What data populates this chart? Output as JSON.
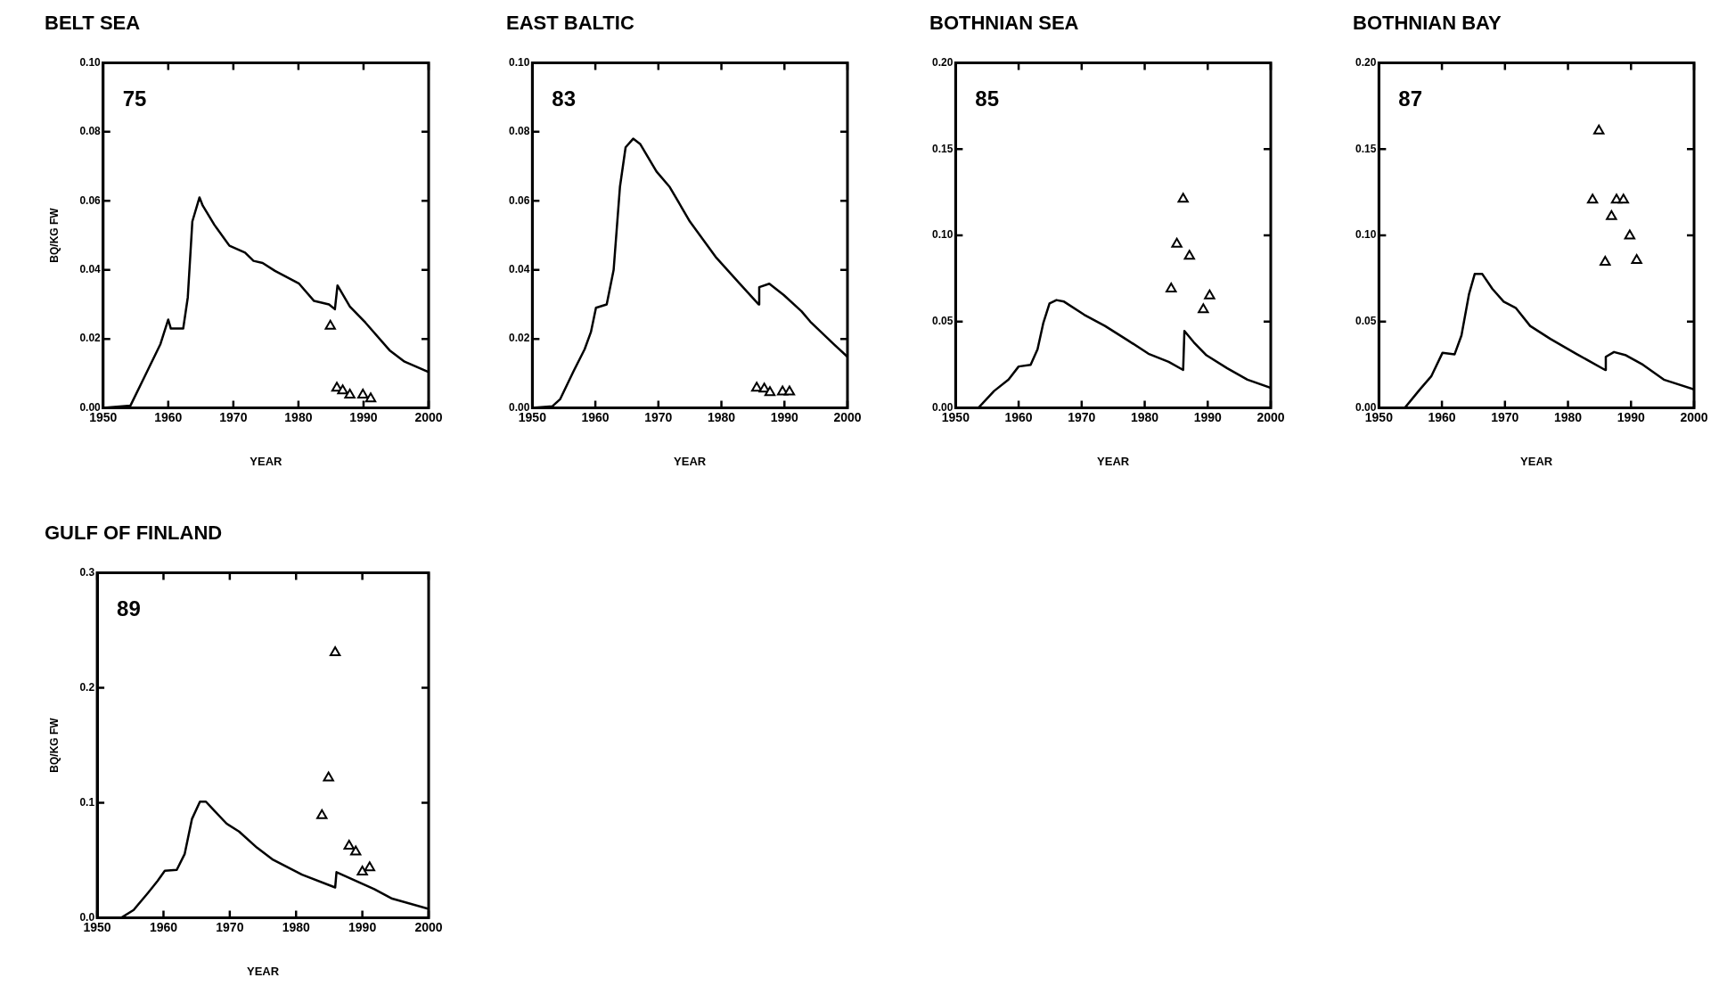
{
  "chart_data": [
    {
      "type": "line",
      "title": "BELT SEA",
      "xlabel": "YEAR",
      "ylabel": "BQ/KG FW",
      "xlim": [
        1950,
        2000
      ],
      "xticks": [
        1950,
        1960,
        1970,
        1980,
        1990,
        2000
      ],
      "ylim": [
        0,
        0.1
      ],
      "yticks": [
        {
          "value": 0,
          "label": "0.00"
        },
        {
          "value": 0.02,
          "label": "0.02"
        },
        {
          "value": 0.04,
          "label": "0.04"
        },
        {
          "value": 0.06,
          "label": "0.06"
        },
        {
          "value": 0.08,
          "label": "0.08"
        },
        {
          "value": 0.1,
          "label": "0.10"
        }
      ],
      "annotations": [
        "75"
      ],
      "series": [
        {
          "type": "line",
          "color": "#000000",
          "x": [
            1950,
            1954.2,
            1956.5,
            1958.8,
            1960,
            1960.4,
            1962.3,
            1963,
            1963.7,
            1964.8,
            1965.3,
            1967.1,
            1969.4,
            1971.8,
            1973.1,
            1974.5,
            1976.4,
            1980.1,
            1982.4,
            1984.7,
            1985.6,
            1986,
            1987.9,
            1990.3,
            1994,
            1996.3,
            2000
          ],
          "values": [
            0,
            0.0007,
            0.0096,
            0.0185,
            0.0256,
            0.023,
            0.023,
            0.032,
            0.054,
            0.061,
            0.0586,
            0.053,
            0.047,
            0.045,
            0.0426,
            0.042,
            0.0397,
            0.036,
            0.031,
            0.03,
            0.0286,
            0.0355,
            0.0294,
            0.0247,
            0.0167,
            0.0134,
            0.0104
          ]
        },
        {
          "type": "scatter",
          "color": "#000000",
          "marker": "triangle",
          "x": [
            1984.9,
            1985.9,
            1986.8,
            1987.9,
            1989.9,
            1991.1
          ],
          "values": [
            0.0237,
            0.0058,
            0.005,
            0.0038,
            0.0038,
            0.0027
          ]
        }
      ]
    },
    {
      "type": "line",
      "title": "EAST BALTIC",
      "xlabel": "YEAR",
      "xlim": [
        1950,
        2000
      ],
      "xticks": [
        1950,
        1960,
        1970,
        1980,
        1990,
        2000
      ],
      "ylim": [
        0,
        0.1
      ],
      "yticks": [
        {
          "value": 0,
          "label": "0.00"
        },
        {
          "value": 0.02,
          "label": "0.02"
        },
        {
          "value": 0.04,
          "label": "0.04"
        },
        {
          "value": 0.06,
          "label": "0.06"
        },
        {
          "value": 0.08,
          "label": "0.08"
        },
        {
          "value": 0.1,
          "label": "0.10"
        }
      ],
      "annotations": [
        "83"
      ],
      "series": [
        {
          "type": "line",
          "color": "#000000",
          "x": [
            1950,
            1953.2,
            1954.4,
            1956.5,
            1958.3,
            1959.3,
            1960.1,
            1961.8,
            1962.9,
            1963.9,
            1964.8,
            1966,
            1967.1,
            1969.7,
            1971.8,
            1975,
            1979.2,
            1982.9,
            1985.9,
            1986,
            1987.6,
            1989.9,
            1992.7,
            1994.1,
            1997.8,
            2000
          ],
          "values": [
            0,
            0.0005,
            0.0025,
            0.0105,
            0.017,
            0.022,
            0.029,
            0.03,
            0.04,
            0.064,
            0.0755,
            0.078,
            0.0765,
            0.0685,
            0.064,
            0.054,
            0.0435,
            0.036,
            0.03,
            0.035,
            0.036,
            0.0327,
            0.028,
            0.025,
            0.0185,
            0.0148
          ]
        },
        {
          "type": "scatter",
          "color": "#000000",
          "marker": "triangle",
          "x": [
            1985.6,
            1986.8,
            1987.7,
            1989.7,
            1990.8
          ],
          "values": [
            0.0058,
            0.0055,
            0.0045,
            0.0047,
            0.0047
          ]
        }
      ]
    },
    {
      "type": "line",
      "title": "BOTHNIAN SEA",
      "xlabel": "YEAR",
      "xlim": [
        1950,
        2000
      ],
      "xticks": [
        1950,
        1960,
        1970,
        1980,
        1990,
        2000
      ],
      "ylim": [
        0,
        0.2
      ],
      "yticks": [
        {
          "value": 0,
          "label": "0.00"
        },
        {
          "value": 0.05,
          "label": "0.05"
        },
        {
          "value": 0.1,
          "label": "0.10"
        },
        {
          "value": 0.15,
          "label": "0.15"
        },
        {
          "value": 0.2,
          "label": "0.20"
        }
      ],
      "annotations": [
        "85"
      ],
      "series": [
        {
          "type": "line",
          "color": "#000000",
          "x": [
            1950,
            1953.6,
            1956.1,
            1958.4,
            1960,
            1961.9,
            1963,
            1963.9,
            1964.9,
            1966,
            1967.2,
            1970.4,
            1973.7,
            1977.4,
            1980.6,
            1983.8,
            1986.1,
            1986.3,
            1987.8,
            1989.8,
            1993.1,
            1996.3,
            2000
          ],
          "values": [
            0,
            0,
            0.0098,
            0.0164,
            0.024,
            0.025,
            0.034,
            0.049,
            0.0606,
            0.0625,
            0.0616,
            0.054,
            0.0475,
            0.039,
            0.0314,
            0.0267,
            0.022,
            0.0446,
            0.038,
            0.0305,
            0.023,
            0.0164,
            0.0117
          ]
        },
        {
          "type": "scatter",
          "color": "#000000",
          "marker": "triangle",
          "x": [
            1984.2,
            1985.1,
            1986.1,
            1987.1,
            1989.3,
            1990.3
          ],
          "values": [
            0.069,
            0.095,
            0.121,
            0.088,
            0.057,
            0.065
          ]
        }
      ]
    },
    {
      "type": "line",
      "title": "BOTHNIAN BAY",
      "xlabel": "YEAR",
      "xlim": [
        1950,
        2000
      ],
      "xticks": [
        1950,
        1960,
        1970,
        1980,
        1990,
        2000
      ],
      "ylim": [
        0,
        0.2
      ],
      "yticks": [
        {
          "value": 0,
          "label": "0.00"
        },
        {
          "value": 0.05,
          "label": "0.05"
        },
        {
          "value": 0.1,
          "label": "0.10"
        },
        {
          "value": 0.15,
          "label": "0.15"
        },
        {
          "value": 0.2,
          "label": "0.20"
        }
      ],
      "annotations": [
        "87"
      ],
      "series": [
        {
          "type": "line",
          "color": "#000000",
          "x": [
            1950,
            1954.1,
            1956.5,
            1958.3,
            1960.1,
            1962,
            1963.1,
            1964.3,
            1965.2,
            1966.4,
            1968,
            1969.8,
            1971.7,
            1974,
            1977.2,
            1981.3,
            1985.9,
            1986,
            1987.3,
            1989.2,
            1991.9,
            1995.2,
            2000
          ],
          "values": [
            0,
            0,
            0.0107,
            0.0183,
            0.032,
            0.031,
            0.042,
            0.066,
            0.0776,
            0.0776,
            0.069,
            0.0616,
            0.058,
            0.0475,
            0.04,
            0.0314,
            0.022,
            0.0296,
            0.0324,
            0.0305,
            0.025,
            0.0164,
            0.0107
          ]
        },
        {
          "type": "scatter",
          "color": "#000000",
          "marker": "triangle",
          "x": [
            1983.9,
            1984.9,
            1985.9,
            1986.9,
            1987.7,
            1988.8,
            1989.8,
            1990.9
          ],
          "values": [
            0.1205,
            0.1605,
            0.0845,
            0.111,
            0.1205,
            0.1205,
            0.0998,
            0.0855
          ]
        }
      ]
    },
    {
      "type": "line",
      "title": "GULF OF FINLAND",
      "xlabel": "YEAR",
      "ylabel": "BQ/KG FW",
      "xlim": [
        1950,
        2000
      ],
      "xticks": [
        1950,
        1960,
        1970,
        1980,
        1990,
        2000
      ],
      "ylim": [
        0,
        0.3
      ],
      "yticks": [
        {
          "value": 0,
          "label": "0.0"
        },
        {
          "value": 0.1,
          "label": "0.1"
        },
        {
          "value": 0.2,
          "label": "0.2"
        },
        {
          "value": 0.3,
          "label": "0.3"
        }
      ],
      "annotations": [
        "89"
      ],
      "series": [
        {
          "type": "line",
          "color": "#000000",
          "x": [
            1950,
            1953.6,
            1955.5,
            1957.7,
            1959.1,
            1960.2,
            1962,
            1963.2,
            1964.3,
            1965.5,
            1966.4,
            1967.7,
            1969.5,
            1971.4,
            1974.1,
            1976.4,
            1980.9,
            1985.9,
            1986.1,
            1989.1,
            1991.8,
            1994.5,
            2000
          ],
          "values": [
            0,
            0,
            0.0069,
            0.022,
            0.032,
            0.041,
            0.0417,
            0.0556,
            0.086,
            0.101,
            0.101,
            0.093,
            0.082,
            0.075,
            0.061,
            0.051,
            0.0375,
            0.0264,
            0.0397,
            0.032,
            0.025,
            0.0167,
            0.0078
          ]
        },
        {
          "type": "scatter",
          "color": "#000000",
          "marker": "triangle",
          "x": [
            1983.9,
            1984.9,
            1985.9,
            1988,
            1989,
            1990,
            1991.1
          ],
          "values": [
            0.089,
            0.1217,
            0.2306,
            0.0625,
            0.0575,
            0.04,
            0.0436
          ]
        }
      ]
    }
  ]
}
